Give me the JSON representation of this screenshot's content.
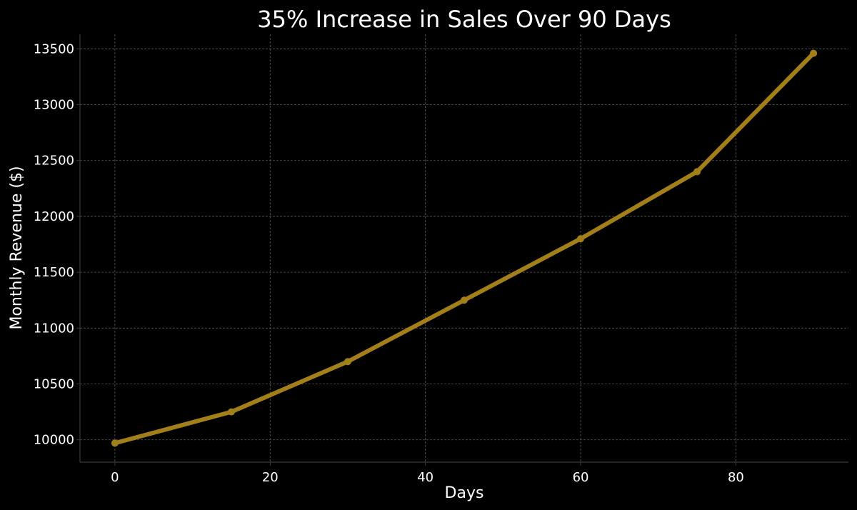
{
  "chart_data": {
    "type": "line",
    "title": "35% Increase in Sales Over 90 Days",
    "xlabel": "Days",
    "ylabel": "Monthly Revenue ($)",
    "xlim": [
      -4.5,
      94.5
    ],
    "ylim": [
      9800,
      13630
    ],
    "x_ticks": [
      0,
      20,
      40,
      60,
      80
    ],
    "y_ticks": [
      10000,
      10500,
      11000,
      11500,
      12000,
      12500,
      13000,
      13500
    ],
    "grid": true,
    "series": [
      {
        "color": "#a37f1a",
        "x": [
          0,
          15,
          30,
          45,
          60,
          75,
          90
        ],
        "y": [
          9970,
          10250,
          10700,
          11250,
          11800,
          12400,
          13460
        ]
      }
    ]
  }
}
